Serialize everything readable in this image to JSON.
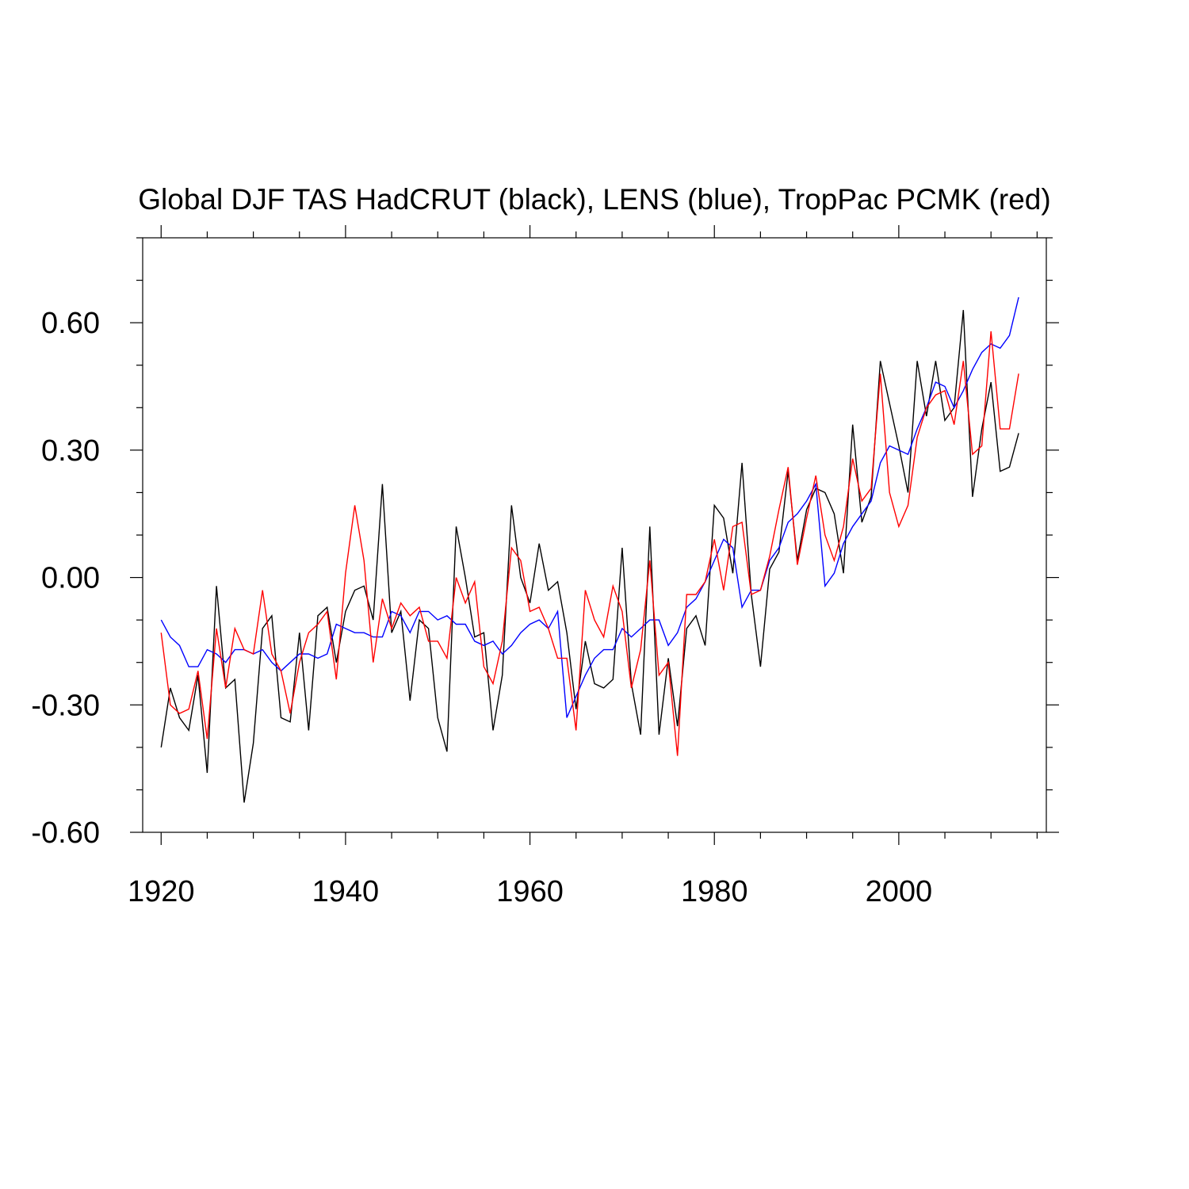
{
  "chart_data": {
    "type": "line",
    "title": "Global DJF TAS HadCRUT (black), LENS (blue), TropPac PCMK (red)",
    "xlabel": "",
    "ylabel": "",
    "xlim": [
      1918,
      2016
    ],
    "ylim": [
      -0.6,
      0.8
    ],
    "x_ticks": [
      1920,
      1940,
      1960,
      1980,
      2000
    ],
    "x_tick_labels": [
      "1920",
      "1940",
      "1960",
      "1980",
      "2000"
    ],
    "y_ticks": [
      -0.6,
      -0.3,
      0.0,
      0.3,
      0.6
    ],
    "y_tick_labels": [
      "-0.60",
      "-0.30",
      "0.00",
      "0.30",
      "0.60"
    ],
    "grid": false,
    "legend": "none",
    "x": [
      1920,
      1921,
      1922,
      1923,
      1924,
      1925,
      1926,
      1927,
      1928,
      1929,
      1930,
      1931,
      1932,
      1933,
      1934,
      1935,
      1936,
      1937,
      1938,
      1939,
      1940,
      1941,
      1942,
      1943,
      1944,
      1945,
      1946,
      1947,
      1948,
      1949,
      1950,
      1951,
      1952,
      1953,
      1954,
      1955,
      1956,
      1957,
      1958,
      1959,
      1960,
      1961,
      1962,
      1963,
      1964,
      1965,
      1966,
      1967,
      1968,
      1969,
      1970,
      1971,
      1972,
      1973,
      1974,
      1975,
      1976,
      1977,
      1978,
      1979,
      1980,
      1981,
      1982,
      1983,
      1984,
      1985,
      1986,
      1987,
      1988,
      1989,
      1990,
      1991,
      1992,
      1993,
      1994,
      1995,
      1996,
      1997,
      1998,
      1999,
      2000,
      2001,
      2002,
      2003,
      2004,
      2005,
      2006,
      2007,
      2008,
      2009,
      2010,
      2011,
      2012,
      2013
    ],
    "series": [
      {
        "color": "#000000",
        "values": [
          -0.4,
          -0.26,
          -0.33,
          -0.36,
          -0.23,
          -0.46,
          -0.02,
          -0.26,
          -0.24,
          -0.53,
          -0.39,
          -0.12,
          -0.09,
          -0.33,
          -0.34,
          -0.13,
          -0.36,
          -0.09,
          -0.07,
          -0.2,
          -0.08,
          -0.03,
          -0.02,
          -0.1,
          0.22,
          -0.13,
          -0.08,
          -0.29,
          -0.1,
          -0.12,
          -0.33,
          -0.41,
          0.12,
          0.0,
          -0.14,
          -0.13,
          -0.36,
          -0.23,
          0.17,
          0.0,
          -0.06,
          0.08,
          -0.03,
          -0.01,
          -0.13,
          -0.31,
          -0.15,
          -0.25,
          -0.26,
          -0.24,
          0.07,
          -0.25,
          -0.37,
          0.12,
          -0.37,
          -0.19,
          -0.35,
          -0.12,
          -0.09,
          -0.16,
          0.17,
          0.14,
          0.01,
          0.27,
          -0.04,
          -0.21,
          0.02,
          0.06,
          0.25,
          0.04,
          0.16,
          0.21,
          0.2,
          0.15,
          0.01,
          0.36,
          0.13,
          0.19,
          0.51,
          0.41,
          0.31,
          0.2,
          0.51,
          0.38,
          0.51,
          0.37,
          0.4,
          0.63,
          0.19,
          0.35,
          0.46,
          0.25,
          0.26,
          0.34
        ]
      },
      {
        "color": "#0000ff",
        "values": [
          -0.1,
          -0.14,
          -0.16,
          -0.21,
          -0.21,
          -0.17,
          -0.18,
          -0.2,
          -0.17,
          -0.17,
          -0.18,
          -0.17,
          -0.2,
          -0.22,
          -0.2,
          -0.18,
          -0.18,
          -0.19,
          -0.18,
          -0.11,
          -0.12,
          -0.13,
          -0.13,
          -0.14,
          -0.14,
          -0.08,
          -0.09,
          -0.13,
          -0.08,
          -0.08,
          -0.1,
          -0.09,
          -0.11,
          -0.11,
          -0.15,
          -0.16,
          -0.15,
          -0.18,
          -0.16,
          -0.13,
          -0.11,
          -0.1,
          -0.12,
          -0.08,
          -0.33,
          -0.28,
          -0.23,
          -0.19,
          -0.17,
          -0.17,
          -0.12,
          -0.14,
          -0.12,
          -0.1,
          -0.1,
          -0.16,
          -0.13,
          -0.07,
          -0.05,
          -0.01,
          0.04,
          0.09,
          0.07,
          -0.07,
          -0.03,
          -0.03,
          0.04,
          0.07,
          0.13,
          0.15,
          0.18,
          0.22,
          -0.02,
          0.01,
          0.08,
          0.12,
          0.15,
          0.18,
          0.27,
          0.31,
          0.3,
          0.29,
          0.35,
          0.4,
          0.46,
          0.45,
          0.4,
          0.44,
          0.49,
          0.53,
          0.55,
          0.54,
          0.57,
          0.66
        ]
      },
      {
        "color": "#ff0000",
        "values": [
          -0.13,
          -0.3,
          -0.32,
          -0.31,
          -0.22,
          -0.38,
          -0.12,
          -0.26,
          -0.12,
          -0.17,
          -0.18,
          -0.03,
          -0.18,
          -0.22,
          -0.32,
          -0.2,
          -0.13,
          -0.11,
          -0.08,
          -0.24,
          0.01,
          0.17,
          0.04,
          -0.2,
          -0.05,
          -0.12,
          -0.06,
          -0.09,
          -0.07,
          -0.15,
          -0.15,
          -0.19,
          0.0,
          -0.06,
          -0.01,
          -0.21,
          -0.25,
          -0.15,
          0.07,
          0.04,
          -0.08,
          -0.07,
          -0.12,
          -0.19,
          -0.19,
          -0.36,
          -0.03,
          -0.1,
          -0.14,
          -0.02,
          -0.08,
          -0.26,
          -0.17,
          0.04,
          -0.23,
          -0.2,
          -0.42,
          -0.04,
          -0.04,
          -0.01,
          0.09,
          -0.03,
          0.12,
          0.13,
          -0.04,
          -0.03,
          0.05,
          0.16,
          0.26,
          0.03,
          0.14,
          0.24,
          0.1,
          0.04,
          0.12,
          0.28,
          0.18,
          0.21,
          0.48,
          0.2,
          0.12,
          0.17,
          0.33,
          0.4,
          0.43,
          0.44,
          0.36,
          0.51,
          0.29,
          0.31,
          0.58,
          0.35,
          0.35,
          0.48
        ]
      }
    ]
  }
}
